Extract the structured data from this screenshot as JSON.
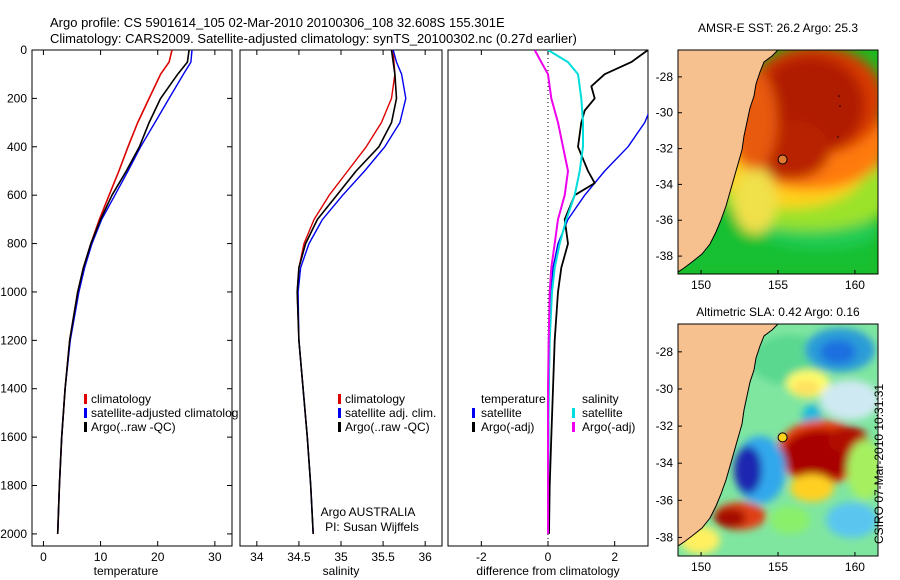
{
  "header": {
    "line1": "Argo profile: CS 5901614_105 02-Mar-2010 20100306_108 32.608S 155.301E",
    "line2": "Climatology: CARS2009. Satellite-adjusted climatology: synTS_20100302.nc (0.27d earlier)"
  },
  "side_stamp": "CSIRO 07-Mar-2010 10:31:31",
  "colors": {
    "climatology": "#dd0000",
    "satellite": "#0000ee",
    "argo": "#000000",
    "sat_salinity": "#00dddd",
    "argo_salinity": "#ee00ee",
    "land": "#f7c08f",
    "hot": "#a01000"
  },
  "chart_data": [
    {
      "type": "line",
      "xlabel": "temperature",
      "ylabel": "",
      "xlim": [
        -2,
        33
      ],
      "ylim": [
        2050,
        0
      ],
      "xticks": [
        0,
        10,
        20,
        30
      ],
      "yticks": [
        0,
        200,
        400,
        600,
        800,
        1000,
        1200,
        1400,
        1600,
        1800,
        2000
      ],
      "legend": {
        "placement": "lower-right",
        "entries": [
          {
            "label": "climatology",
            "color": "#dd0000"
          },
          {
            "label": "satellite-adjusted climatolog",
            "color": "#0000ee"
          },
          {
            "label": "Argo(..raw -QC)",
            "color": "#000000"
          }
        ]
      },
      "series": [
        {
          "depth": [
            0,
            50,
            100,
            200,
            300,
            400,
            500,
            600,
            700,
            800,
            900,
            1000,
            1200,
            1400,
            1600,
            1800,
            2000
          ],
          "values": [
            22.5,
            22.0,
            20.5,
            18.5,
            16.5,
            14.8,
            13.2,
            11.5,
            9.8,
            8.3,
            7.0,
            6.0,
            4.6,
            3.8,
            3.2,
            2.8,
            2.5
          ]
        },
        {
          "depth": [
            0,
            50,
            100,
            200,
            300,
            400,
            500,
            600,
            700,
            800,
            900,
            1000,
            1200,
            1400,
            1600,
            1800,
            2000
          ],
          "values": [
            26.0,
            25.8,
            24.5,
            22.0,
            19.5,
            17.0,
            14.8,
            12.5,
            10.2,
            8.5,
            7.2,
            6.2,
            4.7,
            3.8,
            3.2,
            2.8,
            2.5
          ]
        },
        {
          "depth": [
            0,
            50,
            100,
            200,
            300,
            400,
            500,
            600,
            700,
            800,
            900,
            1000,
            1200,
            1400,
            1600,
            1800,
            2000
          ],
          "values": [
            25.5,
            25.2,
            23.5,
            20.5,
            18.5,
            16.8,
            14.5,
            12.0,
            10.0,
            8.3,
            7.0,
            6.0,
            4.6,
            3.8,
            3.2,
            2.8,
            2.5
          ]
        }
      ]
    },
    {
      "type": "line",
      "xlabel": "salinity",
      "xlim": [
        33.8,
        36.2
      ],
      "ylim": [
        2050,
        0
      ],
      "xticks": [
        34,
        34.5,
        35,
        35.5,
        36
      ],
      "legend": {
        "placement": "lower-right",
        "entries": [
          {
            "label": "climatology",
            "color": "#dd0000"
          },
          {
            "label": "satellite adj. clim.",
            "color": "#0000ee"
          },
          {
            "label": "Argo(..raw -QC)",
            "color": "#000000"
          }
        ]
      },
      "annotations": [
        "Argo AUSTRALIA",
        "PI: Susan Wijffels"
      ],
      "series": [
        {
          "depth": [
            0,
            50,
            100,
            200,
            300,
            400,
            500,
            600,
            700,
            800,
            900,
            1000,
            1200,
            1400,
            1600,
            1800,
            2000
          ],
          "values": [
            35.62,
            35.63,
            35.64,
            35.6,
            35.48,
            35.3,
            35.08,
            34.86,
            34.68,
            34.56,
            34.5,
            34.48,
            34.5,
            34.55,
            34.6,
            34.64,
            34.67
          ]
        },
        {
          "depth": [
            0,
            50,
            100,
            200,
            300,
            400,
            500,
            600,
            700,
            800,
            900,
            1000,
            1200,
            1400,
            1600,
            1800,
            2000
          ],
          "values": [
            35.62,
            35.66,
            35.72,
            35.77,
            35.7,
            35.52,
            35.28,
            35.02,
            34.78,
            34.62,
            34.52,
            34.49,
            34.5,
            34.55,
            34.6,
            34.64,
            34.67
          ]
        },
        {
          "depth": [
            0,
            50,
            100,
            200,
            300,
            400,
            500,
            600,
            700,
            800,
            900,
            1000,
            1200,
            1400,
            1600,
            1800,
            2000
          ],
          "values": [
            35.6,
            35.62,
            35.64,
            35.66,
            35.6,
            35.45,
            35.18,
            34.95,
            34.72,
            34.58,
            34.5,
            34.48,
            34.5,
            34.55,
            34.6,
            34.64,
            34.67
          ]
        }
      ]
    },
    {
      "type": "line",
      "xlabel": "difference from climatology",
      "xlim": [
        -3,
        3
      ],
      "ylim": [
        2050,
        0
      ],
      "xticks": [
        -2,
        0,
        2
      ],
      "legend": {
        "placement": "lower-center",
        "groups": [
          {
            "title": "temperature",
            "entries": [
              {
                "label": "satellite",
                "color": "#0000ee"
              },
              {
                "label": "Argo(-adj)",
                "color": "#000000"
              }
            ]
          },
          {
            "title": "salinity",
            "entries": [
              {
                "label": "satellite",
                "color": "#00dddd"
              },
              {
                "label": "Argo(-adj)",
                "color": "#ee00ee"
              }
            ]
          }
        ]
      },
      "series": [
        {
          "depth": [
            0,
            100,
            200,
            300,
            400,
            500,
            600,
            700,
            800,
            900,
            1000,
            1200,
            1400,
            1600,
            1800,
            2000
          ],
          "values": [
            3.5,
            3.4,
            3.2,
            2.9,
            2.4,
            1.7,
            1.1,
            0.6,
            0.3,
            0.15,
            0.1,
            0.05,
            0.03,
            0.02,
            0.01,
            0.01
          ]
        },
        {
          "depth": [
            0,
            50,
            100,
            150,
            200,
            250,
            300,
            400,
            500,
            550,
            600,
            700,
            800,
            900,
            1000,
            1200,
            1400,
            1600,
            1800,
            2000
          ],
          "values": [
            3.0,
            2.5,
            1.7,
            1.3,
            1.4,
            1.1,
            1.0,
            0.9,
            1.2,
            1.4,
            0.8,
            0.5,
            0.6,
            0.4,
            0.3,
            0.2,
            0.15,
            0.1,
            0.05,
            0.03
          ]
        },
        {
          "depth": [
            0,
            50,
            100,
            200,
            300,
            400,
            500,
            600,
            700,
            800,
            900,
            1000,
            1200,
            1400,
            1600,
            1800,
            2000
          ],
          "values": [
            0.0,
            0.6,
            0.9,
            1.0,
            1.05,
            1.05,
            0.95,
            0.8,
            0.55,
            0.35,
            0.2,
            0.12,
            0.05,
            0.02,
            0.01,
            0.0,
            0.0
          ]
        },
        {
          "depth": [
            0,
            50,
            100,
            200,
            300,
            400,
            500,
            600,
            700,
            800,
            900,
            1000,
            1200,
            1400,
            1600,
            1800,
            2000
          ],
          "values": [
            -0.4,
            -0.2,
            0.0,
            0.1,
            0.3,
            0.45,
            0.6,
            0.5,
            0.3,
            0.2,
            0.1,
            0.05,
            0.02,
            0.0,
            0.0,
            0.0,
            0.0
          ]
        }
      ]
    },
    {
      "type": "heatmap",
      "title": "AMSR-E SST: 26.2 Argo: 25.3",
      "xticks": [
        150,
        155,
        160
      ],
      "yticks": [
        -28,
        -30,
        -32,
        -34,
        -36,
        -38
      ],
      "xlim": [
        148.5,
        161.5
      ],
      "ylim": [
        -39,
        -26.5
      ],
      "float": {
        "lon": 155.301,
        "lat": -32.608
      }
    },
    {
      "type": "heatmap",
      "title": "Altimetric SLA: 0.42 Argo: 0.16",
      "xticks": [
        150,
        155,
        160
      ],
      "yticks": [
        -28,
        -30,
        -32,
        -34,
        -36,
        -38
      ],
      "xlim": [
        148.5,
        161.5
      ],
      "ylim": [
        -39,
        -26.5
      ],
      "float": {
        "lon": 155.301,
        "lat": -32.608
      }
    }
  ]
}
